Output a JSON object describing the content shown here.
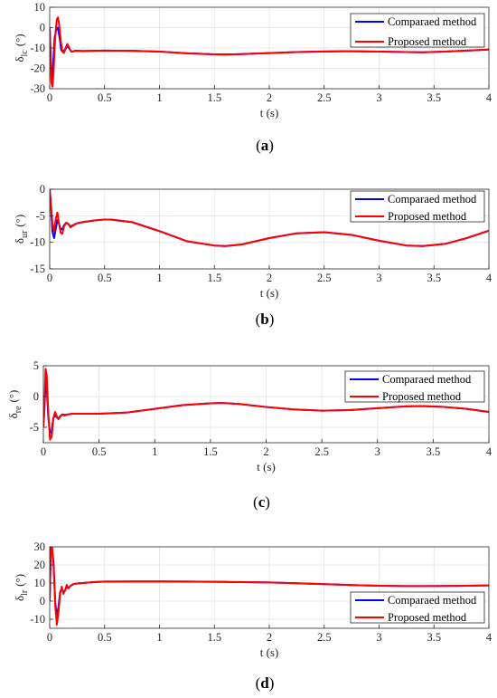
{
  "chart_data": [
    {
      "type": "line",
      "panel_label": "(a)",
      "caption_prefix": "(",
      "caption_letter": "a",
      "caption_suffix": ")",
      "ylabel_symbol": "δ",
      "ylabel_sub": "lc",
      "ylabel_unit": "(°)",
      "xlabel": "t (s)",
      "xlim": [
        0,
        4
      ],
      "ylim": [
        -30,
        10
      ],
      "xticks": [
        0,
        0.5,
        1,
        1.5,
        2,
        2.5,
        3,
        3.5,
        4
      ],
      "xtick_labels": [
        "0",
        "0.5",
        "1",
        "1.5",
        "2",
        "2.5",
        "3",
        "3.5",
        "4"
      ],
      "yticks": [
        -30,
        -20,
        -10,
        0,
        10
      ],
      "ytick_labels": [
        "-30",
        "-20",
        "-10",
        "0",
        "10"
      ],
      "grid": true,
      "legend_position": "top-right",
      "series": [
        {
          "name": "Comparaed method",
          "color": "#0000ff",
          "x": [
            0,
            0.005,
            0.015,
            0.025,
            0.035,
            0.045,
            0.06,
            0.075,
            0.09,
            0.105,
            0.12,
            0.135,
            0.15,
            0.165,
            0.18,
            0.2,
            0.225,
            0.26,
            0.3,
            0.4,
            0.5,
            0.75,
            1.0,
            1.25,
            1.5,
            1.6,
            1.75,
            2.0,
            2.25,
            2.5,
            2.75,
            3.0,
            3.25,
            3.4,
            3.6,
            3.8,
            4.0
          ],
          "y": [
            0,
            -8,
            -25,
            -24,
            -14,
            -5,
            -1,
            0,
            -5,
            -11,
            -12,
            -11,
            -10,
            -9,
            -10.5,
            -11.8,
            -11.5,
            -11.4,
            -11.5,
            -11.4,
            -11.3,
            -11.4,
            -11.8,
            -12.6,
            -13.1,
            -13.2,
            -13.0,
            -12.5,
            -12.0,
            -11.7,
            -11.6,
            -11.8,
            -12.0,
            -12.1,
            -11.8,
            -11.3,
            -10.8
          ]
        },
        {
          "name": "Proposed method",
          "color": "#ff0000",
          "x": [
            0,
            0.005,
            0.015,
            0.025,
            0.035,
            0.045,
            0.055,
            0.065,
            0.075,
            0.085,
            0.1,
            0.115,
            0.13,
            0.145,
            0.16,
            0.175,
            0.19,
            0.21,
            0.23,
            0.26,
            0.3,
            0.4,
            0.5,
            0.75,
            1.0,
            1.25,
            1.5,
            1.6,
            1.75,
            2.0,
            2.25,
            2.5,
            2.75,
            3.0,
            3.25,
            3.4,
            3.6,
            3.8,
            4.0
          ],
          "y": [
            0,
            -10,
            -27,
            -29,
            -22,
            -10,
            -1,
            4,
            5,
            2,
            -6,
            -11.5,
            -12.5,
            -10,
            -8,
            -9.5,
            -11.5,
            -11.8,
            -11.3,
            -11.4,
            -11.5,
            -11.4,
            -11.3,
            -11.4,
            -11.8,
            -12.6,
            -13.1,
            -13.2,
            -13.0,
            -12.5,
            -12.0,
            -11.7,
            -11.6,
            -11.8,
            -12.0,
            -12.1,
            -11.8,
            -11.3,
            -10.8
          ]
        }
      ]
    },
    {
      "type": "line",
      "panel_label": "(b)",
      "caption_prefix": "(",
      "caption_letter": "b",
      "caption_suffix": ")",
      "ylabel_symbol": "δ",
      "ylabel_sub": "ur",
      "ylabel_unit": "(°)",
      "xlabel": "t (s)",
      "xlim": [
        0,
        4
      ],
      "ylim": [
        -15,
        0
      ],
      "xticks": [
        0,
        0.5,
        1,
        1.5,
        2,
        2.5,
        3,
        3.5,
        4
      ],
      "xtick_labels": [
        "0",
        "0.5",
        "1",
        "1.5",
        "2",
        "2.5",
        "3",
        "3.5",
        "4"
      ],
      "yticks": [
        -15,
        -10,
        -5,
        0
      ],
      "ytick_labels": [
        "-15",
        "-10",
        "-5",
        "0"
      ],
      "grid": true,
      "legend_position": "top-right",
      "series": [
        {
          "name": "Comparaed method",
          "color": "#0000ff",
          "x": [
            0,
            0.01,
            0.025,
            0.04,
            0.055,
            0.07,
            0.085,
            0.1,
            0.115,
            0.13,
            0.15,
            0.17,
            0.19,
            0.21,
            0.25,
            0.3,
            0.4,
            0.5,
            0.55,
            0.75,
            1.0,
            1.25,
            1.5,
            1.6,
            1.75,
            2.0,
            2.25,
            2.5,
            2.75,
            3.0,
            3.25,
            3.4,
            3.6,
            3.8,
            4.0
          ],
          "y": [
            0,
            -3,
            -8,
            -9.2,
            -7.5,
            -5.8,
            -6.5,
            -7.6,
            -7.5,
            -6.8,
            -6.3,
            -6.6,
            -7.0,
            -6.8,
            -6.4,
            -6.2,
            -5.9,
            -5.7,
            -5.7,
            -6.2,
            -7.9,
            -9.8,
            -10.6,
            -10.7,
            -10.4,
            -9.2,
            -8.3,
            -8.1,
            -8.6,
            -9.7,
            -10.6,
            -10.7,
            -10.3,
            -9.2,
            -7.8
          ]
        },
        {
          "name": "Proposed method",
          "color": "#ff0000",
          "x": [
            0,
            0.01,
            0.025,
            0.04,
            0.055,
            0.07,
            0.085,
            0.1,
            0.115,
            0.13,
            0.15,
            0.17,
            0.19,
            0.21,
            0.25,
            0.3,
            0.4,
            0.5,
            0.55,
            0.75,
            1.0,
            1.25,
            1.5,
            1.6,
            1.75,
            2.0,
            2.25,
            2.5,
            2.75,
            3.0,
            3.25,
            3.4,
            3.6,
            3.8,
            4.0
          ],
          "y": [
            0,
            -2.5,
            -6.5,
            -8.0,
            -5.6,
            -4.4,
            -6.5,
            -8.2,
            -8.4,
            -7.0,
            -6.3,
            -6.5,
            -7.2,
            -6.9,
            -6.4,
            -6.2,
            -5.9,
            -5.7,
            -5.7,
            -6.2,
            -7.9,
            -9.8,
            -10.6,
            -10.7,
            -10.4,
            -9.2,
            -8.3,
            -8.1,
            -8.6,
            -9.7,
            -10.6,
            -10.7,
            -10.3,
            -9.2,
            -7.8
          ]
        }
      ]
    },
    {
      "type": "line",
      "panel_label": "(c)",
      "caption_prefix": "(",
      "caption_letter": "c",
      "caption_suffix": ")",
      "ylabel_symbol": "δ",
      "ylabel_sub": "re",
      "ylabel_unit": "(°)",
      "xlabel": "t (s)",
      "xlim": [
        0,
        4
      ],
      "ylim": [
        -7.5,
        5
      ],
      "xticks": [
        0,
        0.5,
        1,
        1.5,
        2,
        2.5,
        3,
        3.5,
        4
      ],
      "xtick_labels": [
        "0",
        "0.5",
        "1",
        "1.5",
        "2",
        "2.5",
        "3",
        "3.5",
        "4"
      ],
      "yticks": [
        -5,
        0,
        5
      ],
      "ytick_labels": [
        "-5",
        "0",
        "5"
      ],
      "grid": true,
      "legend_position": "top-right",
      "series": [
        {
          "name": "Comparaed method",
          "color": "#0000ff",
          "x": [
            0,
            0.01,
            0.02,
            0.03,
            0.045,
            0.06,
            0.075,
            0.09,
            0.105,
            0.12,
            0.135,
            0.15,
            0.17,
            0.19,
            0.22,
            0.26,
            0.3,
            0.4,
            0.5,
            0.75,
            1.0,
            1.25,
            1.5,
            1.6,
            1.75,
            2.0,
            2.25,
            2.5,
            2.75,
            3.0,
            3.25,
            3.4,
            3.6,
            3.8,
            4.0
          ],
          "y": [
            -5,
            -2,
            2.5,
            1.5,
            -3.5,
            -6,
            -5.5,
            -3.5,
            -3.0,
            -3.4,
            -3.6,
            -3.2,
            -2.9,
            -3.0,
            -2.9,
            -2.8,
            -2.8,
            -2.8,
            -2.8,
            -2.6,
            -2.0,
            -1.4,
            -1.1,
            -1.05,
            -1.2,
            -1.7,
            -2.1,
            -2.3,
            -2.2,
            -1.9,
            -1.6,
            -1.55,
            -1.7,
            -2.0,
            -2.5
          ]
        },
        {
          "name": "Proposed method",
          "color": "#ff0000",
          "x": [
            0,
            0.01,
            0.02,
            0.03,
            0.045,
            0.06,
            0.075,
            0.09,
            0.105,
            0.12,
            0.135,
            0.15,
            0.17,
            0.19,
            0.22,
            0.26,
            0.3,
            0.4,
            0.5,
            0.75,
            1.0,
            1.25,
            1.5,
            1.6,
            1.75,
            2.0,
            2.25,
            2.5,
            2.75,
            3.0,
            3.25,
            3.4,
            3.6,
            3.8,
            4.0
          ],
          "y": [
            -5,
            -1,
            4.5,
            3.5,
            -3,
            -7,
            -6.5,
            -3.5,
            -2.5,
            -3.2,
            -3.7,
            -3.3,
            -2.9,
            -3.1,
            -2.9,
            -2.8,
            -2.8,
            -2.8,
            -2.8,
            -2.6,
            -2.0,
            -1.4,
            -1.1,
            -1.05,
            -1.2,
            -1.7,
            -2.1,
            -2.3,
            -2.2,
            -1.9,
            -1.6,
            -1.55,
            -1.7,
            -2.0,
            -2.5
          ]
        }
      ]
    },
    {
      "type": "line",
      "panel_label": "(d)",
      "caption_prefix": "(",
      "caption_letter": "d",
      "caption_suffix": ")",
      "ylabel_symbol": "δ",
      "ylabel_sub": "lr",
      "ylabel_unit": "(°)",
      "xlabel": "t (s)",
      "xlim": [
        0,
        4
      ],
      "ylim": [
        -15,
        30
      ],
      "xticks": [
        0,
        0.5,
        1,
        1.5,
        2,
        2.5,
        3,
        3.5,
        4
      ],
      "xtick_labels": [
        "0",
        "0.5",
        "1",
        "1.5",
        "2",
        "2.5",
        "3",
        "3.5",
        "4"
      ],
      "yticks": [
        -10,
        0,
        10,
        20,
        30
      ],
      "ytick_labels": [
        "-10",
        "0",
        "10",
        "20",
        "30"
      ],
      "grid": true,
      "legend_position": "bottom-right",
      "series": [
        {
          "name": "Comparaed method",
          "color": "#0000ff",
          "x": [
            0,
            0.01,
            0.02,
            0.035,
            0.05,
            0.065,
            0.08,
            0.095,
            0.11,
            0.125,
            0.14,
            0.155,
            0.17,
            0.19,
            0.22,
            0.26,
            0.3,
            0.4,
            0.5,
            0.75,
            1.0,
            1.25,
            1.5,
            1.6,
            1.75,
            2.0,
            2.25,
            2.5,
            2.75,
            3.0,
            3.25,
            3.4,
            3.6,
            3.8,
            4.0
          ],
          "y": [
            0,
            28,
            30,
            20,
            0,
            -9,
            -3,
            5,
            7,
            5,
            6,
            8,
            7,
            8.5,
            9.5,
            9.8,
            10.0,
            10.5,
            10.8,
            10.9,
            10.9,
            10.8,
            10.7,
            10.6,
            10.5,
            10.3,
            9.9,
            9.4,
            8.9,
            8.5,
            8.3,
            8.3,
            8.4,
            8.5,
            8.7
          ]
        },
        {
          "name": "Proposed method",
          "color": "#ff0000",
          "x": [
            0,
            0.01,
            0.02,
            0.035,
            0.05,
            0.065,
            0.08,
            0.095,
            0.11,
            0.125,
            0.14,
            0.155,
            0.17,
            0.19,
            0.22,
            0.26,
            0.3,
            0.4,
            0.5,
            0.75,
            1.0,
            1.25,
            1.5,
            1.6,
            1.75,
            2.0,
            2.25,
            2.5,
            2.75,
            3.0,
            3.25,
            3.4,
            3.6,
            3.8,
            4.0
          ],
          "y": [
            0,
            30,
            30,
            22,
            -2,
            -13,
            -6,
            4,
            8,
            4,
            6,
            9,
            7,
            8.5,
            9.5,
            9.8,
            10.0,
            10.5,
            10.8,
            10.9,
            10.9,
            10.8,
            10.7,
            10.6,
            10.5,
            10.3,
            9.9,
            9.4,
            8.9,
            8.5,
            8.3,
            8.3,
            8.4,
            8.5,
            8.7
          ]
        }
      ]
    }
  ]
}
